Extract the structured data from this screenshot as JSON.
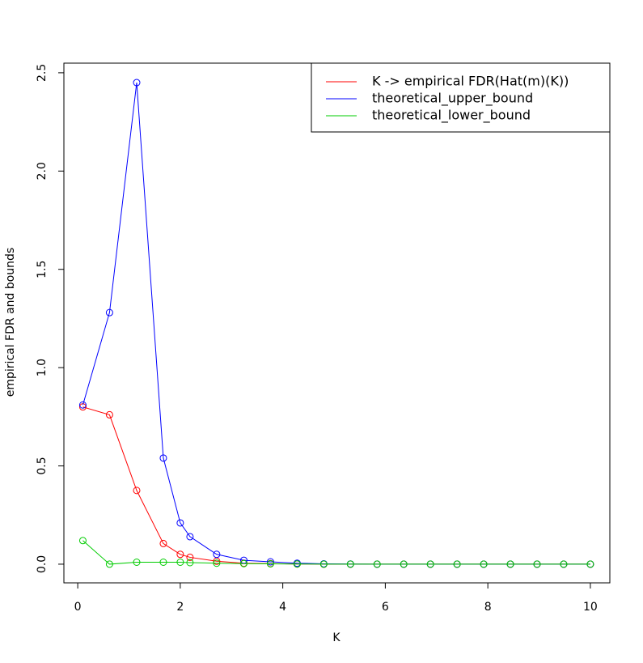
{
  "chart_data": {
    "type": "line",
    "x_label": "K",
    "y_label": "empirical FDR and bounds",
    "x": [
      0.1,
      0.62,
      1.15,
      1.67,
      2.0,
      2.19,
      2.71,
      3.24,
      3.76,
      4.28,
      4.8,
      5.32,
      5.84,
      6.36,
      6.88,
      7.4,
      7.92,
      8.44,
      8.96,
      9.48,
      10
    ],
    "series": [
      {
        "name": "K -> empirical FDR(Hat(m)(K))",
        "color": "#ff0000",
        "values": [
          0.8,
          0.76,
          0.375,
          0.105,
          0.05,
          0.035,
          0.015,
          0.005,
          0.003,
          0.001,
          0,
          0,
          0,
          0,
          0,
          0,
          0,
          0,
          0,
          0,
          0
        ]
      },
      {
        "name": "theoretical_upper_bound",
        "color": "#0000ff",
        "values": [
          0.81,
          1.28,
          2.45,
          0.54,
          0.21,
          0.14,
          0.05,
          0.02,
          0.012,
          0.005,
          0.002,
          0.001,
          0,
          0,
          0,
          0,
          0,
          0,
          0,
          0,
          0
        ]
      },
      {
        "name": "theoretical_lower_bound",
        "color": "#00cc00",
        "values": [
          0.12,
          0,
          0.01,
          0.01,
          0.01,
          0.008,
          0.005,
          0.003,
          0.002,
          0.001,
          0,
          0,
          0,
          0,
          0,
          0,
          0,
          0,
          0,
          0,
          0
        ]
      }
    ],
    "xlim": [
      -0.27,
      10.38
    ],
    "ylim": [
      -0.095,
      2.549
    ],
    "xticks": [
      0,
      2,
      4,
      6,
      8,
      10
    ],
    "yticks": [
      {
        "value": 0,
        "label": "0.0"
      },
      0.5,
      {
        "value": 1,
        "label": "1.0"
      },
      1.5,
      {
        "value": 2,
        "label": "2.0"
      },
      2.5
    ],
    "legend": "top-right"
  }
}
